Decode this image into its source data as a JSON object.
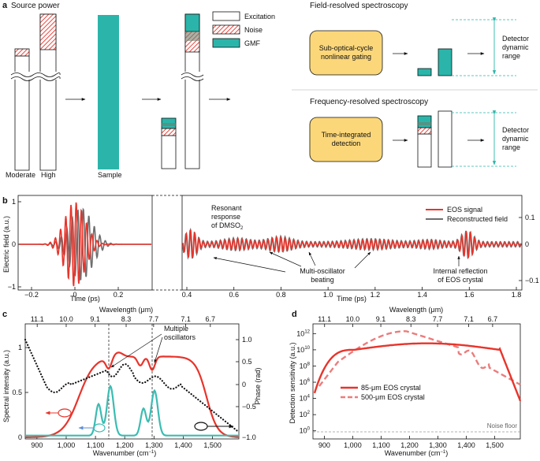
{
  "colors": {
    "excitation": "#ffffff",
    "noise": "#e8473f",
    "gmf": "#2bb5aa",
    "box": "#fbd77a",
    "red": "#e8342b",
    "gray": "#6e6e6e",
    "teal": "#3bbcb2",
    "black": "#111111",
    "pink": "#ec7c7c"
  },
  "panel_a": {
    "label": "a",
    "source_power": "Source power",
    "moderate": "Moderate",
    "high": "High",
    "sample": "Sample",
    "legend": [
      "Excitation",
      "Noise",
      "GMF"
    ],
    "field_title": "Field-resolved spectroscopy",
    "freq_title": "Frequency-resolved spectroscopy",
    "gating_line1": "Sub-optical-cycle",
    "gating_line2": "nonlinear gating",
    "detection_line1": "Time-integrated",
    "detection_line2": "detection",
    "detector1": "Detector",
    "detector2": "dynamic",
    "detector3": "range"
  },
  "panel_b": {
    "label": "b",
    "ylabel": "Electric field (a.u.)",
    "xlabel": "Time (ps)",
    "left_xticks": [
      "−0.2",
      "0",
      "0.2"
    ],
    "left_yticks": [
      "1",
      "0",
      "−1"
    ],
    "right_xticks": [
      "0.4",
      "0.6",
      "0.8",
      "1.0",
      "1.2",
      "1.4",
      "1.6",
      "1.8"
    ],
    "right_yticks": [
      "0.1",
      "0",
      "−0.1"
    ],
    "ann_resonant1": "Resonant",
    "ann_resonant2": "response",
    "ann_resonant3": "of DMSO",
    "ann_resonant3_sub": "2",
    "ann_multi1": "Multi-oscillator",
    "ann_multi2": "beating",
    "ann_internal1": "Internal reflection",
    "ann_internal2": "of EOS crystal",
    "legend_eos": "EOS signal",
    "legend_recon": "Reconstructed field"
  },
  "panel_c": {
    "label": "c",
    "top_label": "Wavelength (μm)",
    "top_ticks": [
      "11.1",
      "10.0",
      "9.1",
      "8.3",
      "7.7",
      "7.1",
      "6.7"
    ],
    "bottom_label": "Wavenumber (cm",
    "bottom_label_sup": "−1",
    "bottom_ticks": [
      "900",
      "1,000",
      "1,100",
      "1,200",
      "1,300",
      "1,400",
      "1,500"
    ],
    "ylabel_left": "Spectral intensity (a.u.)",
    "ylabel_right": "Phase (rad)",
    "left_yticks": [
      "1",
      "0.5",
      "0"
    ],
    "right_yticks": [
      "1.0",
      "0.5",
      "0",
      "−0.5",
      "−1.0"
    ],
    "ann_multiple1": "Multiple",
    "ann_multiple2": "oscillators"
  },
  "panel_d": {
    "label": "d",
    "top_label": "Wavelength (μm)",
    "top_ticks": [
      "11.1",
      "10.0",
      "9.1",
      "8.3",
      "7.7",
      "7.1",
      "6.7"
    ],
    "bottom_label": "Wavenumber (cm",
    "bottom_label_sup": "−1",
    "bottom_ticks": [
      "900",
      "1,000",
      "1,100",
      "1,200",
      "1,300",
      "1,400",
      "1,500"
    ],
    "ylabel": "Detection sensitivity (a.u.)",
    "yticks": [
      {
        "base": "10",
        "exp": "12"
      },
      {
        "base": "10",
        "exp": "10"
      },
      {
        "base": "10",
        "exp": "8"
      },
      {
        "base": "10",
        "exp": "6"
      },
      {
        "base": "10",
        "exp": "4"
      },
      {
        "base": "10",
        "exp": "2"
      },
      {
        "base": "10",
        "exp": "0"
      }
    ],
    "legend_85": "85-μm EOS crystal",
    "legend_500": "500-μm EOS crystal",
    "noise_floor": "Noise floor"
  }
}
